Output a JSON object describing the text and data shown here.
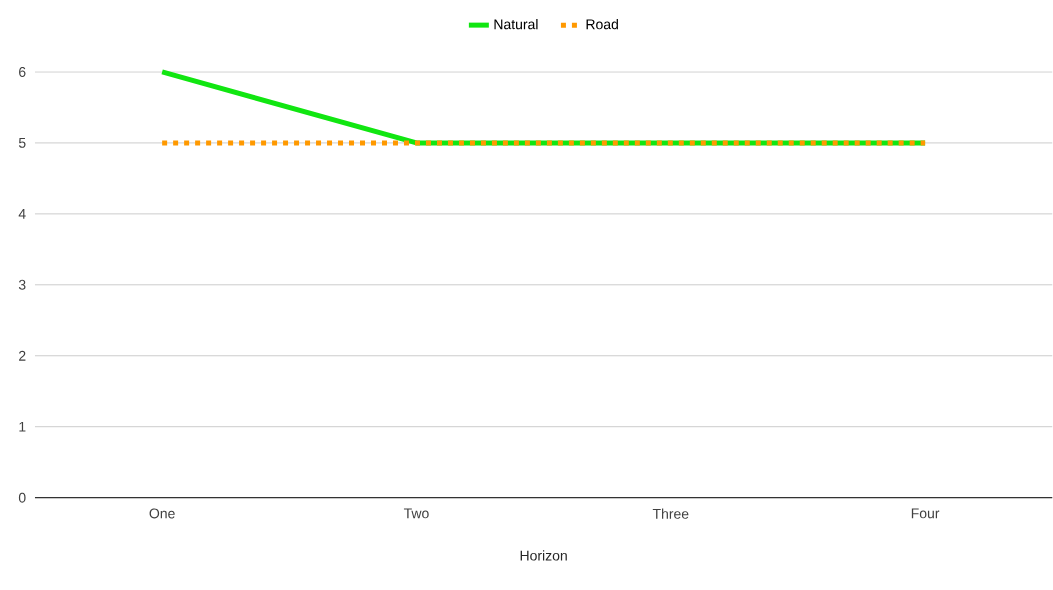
{
  "chart_data": {
    "type": "line",
    "xlabel": "Horizon",
    "categories": [
      "One",
      "Two",
      "Three",
      "Four"
    ],
    "series": [
      {
        "name": "Natural",
        "color": "#11e611",
        "values": [
          6,
          5,
          5,
          5
        ],
        "line_style": "solid"
      },
      {
        "name": "Road",
        "color": "#ff9900",
        "values": [
          5,
          5,
          5,
          5
        ],
        "line_style": "dotted"
      }
    ],
    "ylim": [
      0,
      6
    ],
    "yticks": [
      0,
      1,
      2,
      3,
      4,
      5,
      6
    ],
    "grid": "y",
    "legend": "top"
  }
}
